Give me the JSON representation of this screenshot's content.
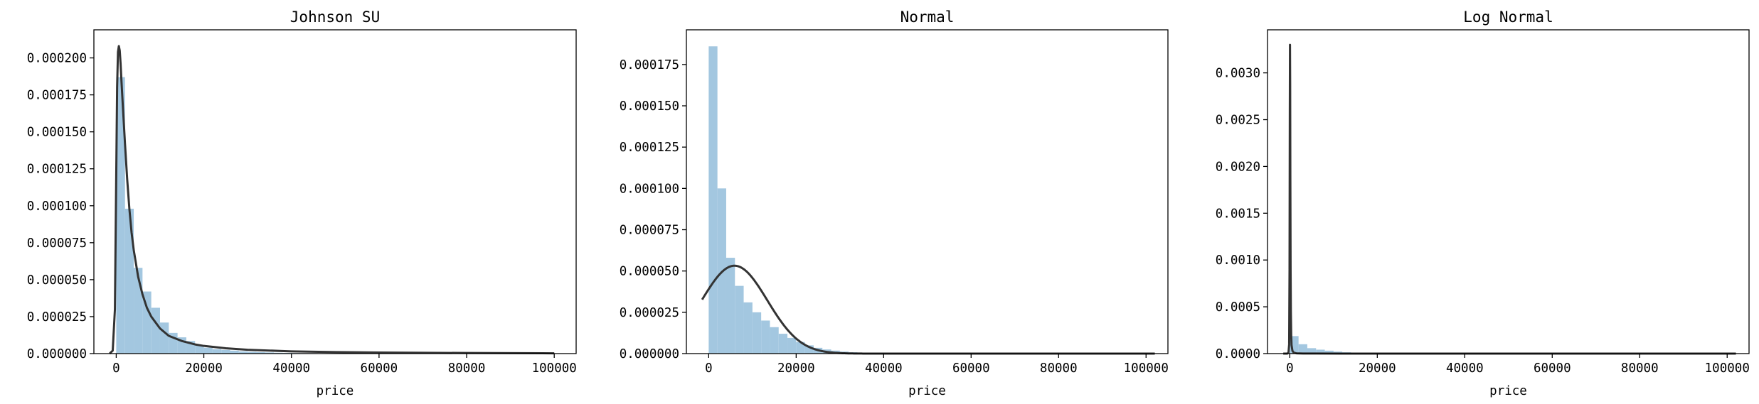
{
  "chart_data": [
    {
      "type": "histogram",
      "title": "Johnson SU",
      "xlabel": "price",
      "ylabel": "",
      "xlim": [
        -5100,
        105000
      ],
      "ylim": [
        0,
        0.000219
      ],
      "xticks": [
        0,
        20000,
        40000,
        60000,
        80000,
        100000
      ],
      "xtick_labels": [
        "0",
        "20000",
        "40000",
        "60000",
        "80000",
        "100000"
      ],
      "yticks": [
        0,
        2.5e-05,
        5e-05,
        7.5e-05,
        0.0001,
        0.000125,
        0.00015,
        0.000175,
        0.0002
      ],
      "ytick_labels": [
        "0.000000",
        "0.000025",
        "0.000050",
        "0.000075",
        "0.000100",
        "0.000125",
        "0.000150",
        "0.000175",
        "0.000200"
      ],
      "bar_color": "#a3c7e0",
      "line_color": "#333333",
      "bins": {
        "start": 0,
        "width": 2000,
        "heights": [
          0.000187,
          9.8e-05,
          5.8e-05,
          4.2e-05,
          3.1e-05,
          2.1e-05,
          1.4e-05,
          1.1e-05,
          8.5e-06,
          5.5e-06,
          4e-06,
          3e-06,
          2.5e-06,
          2e-06,
          1.5e-06,
          1.2e-06,
          1e-06,
          8e-07,
          6e-07,
          5e-07,
          4e-07,
          3e-07,
          3e-07,
          2e-07,
          2e-07
        ]
      },
      "fit_line": {
        "x": [
          -1500,
          -800,
          -300,
          0,
          200,
          400,
          600,
          800,
          1000,
          1200,
          1500,
          2000,
          2500,
          3000,
          3500,
          4000,
          5000,
          6000,
          7000,
          8000,
          10000,
          12000,
          15000,
          18000,
          20000,
          25000,
          30000,
          40000,
          50000,
          60000,
          80000,
          100000
        ],
        "y": [
          0,
          2e-06,
          3e-05,
          0.00012,
          0.00018,
          0.000204,
          0.000208,
          0.000205,
          0.000196,
          0.000184,
          0.000168,
          0.000142,
          0.000118,
          9.8e-05,
          8.2e-05,
          7e-05,
          5.2e-05,
          4e-05,
          3.1e-05,
          2.5e-05,
          1.7e-05,
          1.2e-05,
          8.5e-06,
          6.2e-06,
          5.2e-06,
          3.6e-06,
          2.6e-06,
          1.5e-06,
          1e-06,
          7e-07,
          4e-07,
          2e-07
        ]
      }
    },
    {
      "type": "histogram",
      "title": "Normal",
      "xlabel": "price",
      "ylabel": "",
      "xlim": [
        -5100,
        105000
      ],
      "ylim": [
        0,
        0.000196
      ],
      "xticks": [
        0,
        20000,
        40000,
        60000,
        80000,
        100000
      ],
      "xtick_labels": [
        "0",
        "20000",
        "40000",
        "60000",
        "80000",
        "100000"
      ],
      "yticks": [
        0,
        2.5e-05,
        5e-05,
        7.5e-05,
        0.0001,
        0.000125,
        0.00015,
        0.000175
      ],
      "ytick_labels": [
        "0.000000",
        "0.000025",
        "0.000050",
        "0.000075",
        "0.000100",
        "0.000125",
        "0.000150",
        "0.000175"
      ],
      "bar_color": "#a3c7e0",
      "line_color": "#333333",
      "bins": {
        "start": 0,
        "width": 2000,
        "heights": [
          0.000186,
          0.0001,
          5.8e-05,
          4.1e-05,
          3.1e-05,
          2.5e-05,
          2e-05,
          1.6e-05,
          1.2e-05,
          9.5e-06,
          7e-06,
          5e-06,
          3.5e-06,
          2.5e-06,
          1.8e-06,
          1.2e-06,
          8e-07,
          5e-07,
          3e-07,
          2e-07
        ]
      },
      "fit_line": {
        "mean": 5900,
        "std": 7500,
        "x_range": [
          -1500,
          102000
        ]
      }
    },
    {
      "type": "histogram",
      "title": "Log Normal",
      "xlabel": "price",
      "ylabel": "",
      "xlim": [
        -5100,
        105000
      ],
      "ylim": [
        0,
        0.00346
      ],
      "xticks": [
        0,
        20000,
        40000,
        60000,
        80000,
        100000
      ],
      "xtick_labels": [
        "0",
        "20000",
        "40000",
        "60000",
        "80000",
        "100000"
      ],
      "yticks": [
        0,
        0.0005,
        0.001,
        0.0015,
        0.002,
        0.0025,
        0.003
      ],
      "ytick_labels": [
        "0.0000",
        "0.0005",
        "0.0010",
        "0.0015",
        "0.0020",
        "0.0025",
        "0.0030"
      ],
      "bar_color": "#a3c7e0",
      "line_color": "#333333",
      "bins": {
        "start": 0,
        "width": 2000,
        "heights": [
          0.000187,
          0.0001,
          5.8e-05,
          4.2e-05,
          3.1e-05,
          2.1e-05,
          1.4e-05,
          1.1e-05,
          8.5e-06,
          5.5e-06,
          4e-06,
          3e-06,
          2.5e-06,
          2e-06,
          1.5e-06,
          1.2e-06,
          1e-06,
          8e-07,
          6e-07,
          5e-07
        ]
      },
      "fit_line": {
        "x": [
          -1500,
          -600,
          -300,
          -150,
          -60,
          0,
          40,
          80,
          120,
          180,
          240,
          320,
          400,
          600,
          900,
          1500,
          3000,
          6000,
          12000,
          30000,
          60000,
          102000
        ],
        "y": [
          0,
          0,
          1e-05,
          0.0001,
          0.0009,
          0.0026,
          0.0033,
          0.0029,
          0.0019,
          0.0009,
          0.00045,
          0.0002,
          9e-05,
          3e-05,
          1e-05,
          3e-06,
          1e-06,
          5e-07,
          2e-07,
          1e-07,
          0,
          0
        ]
      }
    }
  ]
}
